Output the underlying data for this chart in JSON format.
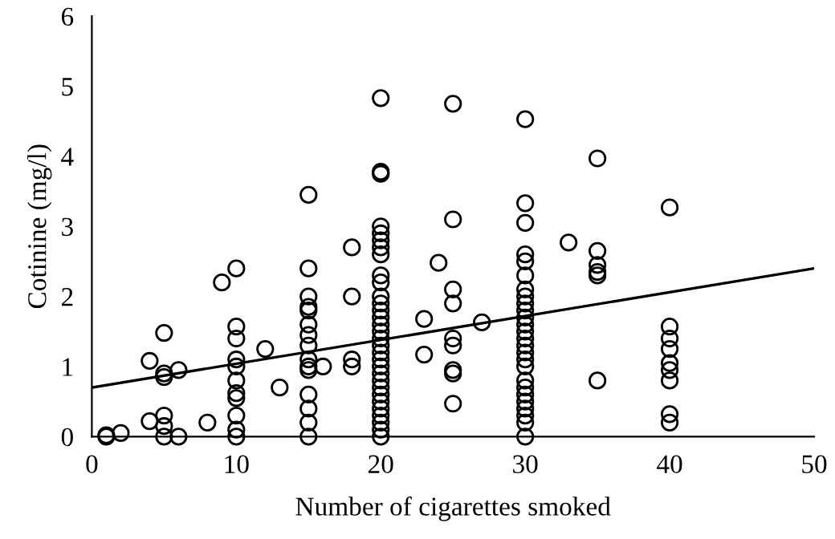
{
  "chart_data": {
    "type": "scatter",
    "xlabel": "Number of cigarettes smoked",
    "ylabel": "Cotinine (mg/l)",
    "xlim": [
      0,
      50
    ],
    "ylim": [
      0,
      6
    ],
    "xticks": [
      0,
      10,
      20,
      30,
      40,
      50
    ],
    "yticks": [
      0,
      1,
      2,
      3,
      4,
      5,
      6
    ],
    "grid": false,
    "legend": false,
    "marker": "circle",
    "series": [
      {
        "color": "#000000",
        "x": [
          1,
          1,
          2,
          4,
          4,
          5,
          5,
          5,
          5,
          5,
          5,
          6,
          6,
          8,
          9,
          10,
          10,
          10,
          10,
          10,
          10,
          10,
          10,
          10,
          10,
          10,
          12,
          13,
          15,
          15,
          15,
          15,
          15,
          15,
          15,
          15,
          15,
          15,
          15,
          15,
          15,
          15,
          15,
          16,
          18,
          18,
          18,
          18,
          20,
          20,
          20,
          20,
          20,
          20,
          20,
          20,
          20,
          20,
          20,
          20,
          20,
          20,
          20,
          20,
          20,
          20,
          20,
          20,
          20,
          20,
          20,
          20,
          20,
          20,
          20,
          20,
          20,
          20,
          20,
          23,
          23,
          24,
          25,
          25,
          25,
          25,
          25,
          25,
          25,
          25,
          25,
          27,
          30,
          30,
          30,
          30,
          30,
          30,
          30,
          30,
          30,
          30,
          30,
          30,
          30,
          30,
          30,
          30,
          30,
          30,
          30,
          30,
          30,
          30,
          30,
          30,
          30,
          30,
          33,
          35,
          35,
          35,
          35,
          35,
          35,
          40,
          40,
          40,
          40,
          40,
          40,
          40,
          40,
          40
        ],
        "values": [
          0.02,
          0.0,
          0.05,
          0.22,
          1.08,
          1.48,
          0.9,
          0.85,
          0.3,
          0.15,
          0.0,
          0.95,
          0.0,
          0.2,
          2.2,
          2.4,
          1.57,
          1.4,
          1.1,
          1.0,
          0.8,
          0.62,
          0.55,
          0.3,
          0.1,
          0.0,
          1.25,
          0.7,
          3.45,
          2.4,
          2.0,
          1.85,
          1.8,
          1.6,
          1.45,
          1.3,
          1.1,
          1.0,
          0.95,
          0.6,
          0.4,
          0.2,
          0.0,
          1.0,
          2.7,
          2.0,
          1.1,
          1.0,
          4.83,
          3.78,
          3.75,
          3.0,
          2.9,
          2.8,
          2.7,
          2.6,
          2.3,
          2.2,
          2.0,
          1.9,
          1.8,
          1.7,
          1.6,
          1.5,
          1.4,
          1.3,
          1.2,
          1.1,
          1.0,
          0.9,
          0.8,
          0.7,
          0.6,
          0.5,
          0.4,
          0.3,
          0.2,
          0.1,
          0.0,
          1.68,
          1.17,
          2.48,
          4.75,
          3.1,
          2.1,
          1.9,
          1.4,
          1.3,
          0.95,
          0.9,
          0.47,
          1.63,
          4.53,
          3.33,
          3.05,
          2.6,
          2.5,
          2.3,
          2.1,
          2.0,
          1.9,
          1.8,
          1.7,
          1.6,
          1.5,
          1.4,
          1.3,
          1.2,
          1.1,
          1.0,
          0.8,
          0.7,
          0.6,
          0.5,
          0.4,
          0.3,
          0.2,
          0.0,
          2.77,
          3.97,
          2.65,
          2.45,
          2.35,
          2.3,
          0.8,
          3.27,
          1.57,
          1.4,
          1.25,
          1.05,
          0.95,
          0.8,
          0.32,
          0.2
        ]
      },
      {
        "type": "line",
        "color": "#000000",
        "marker": "none",
        "line_style": "solid",
        "x": [
          0,
          50
        ],
        "values": [
          0.7,
          2.4
        ]
      }
    ]
  }
}
